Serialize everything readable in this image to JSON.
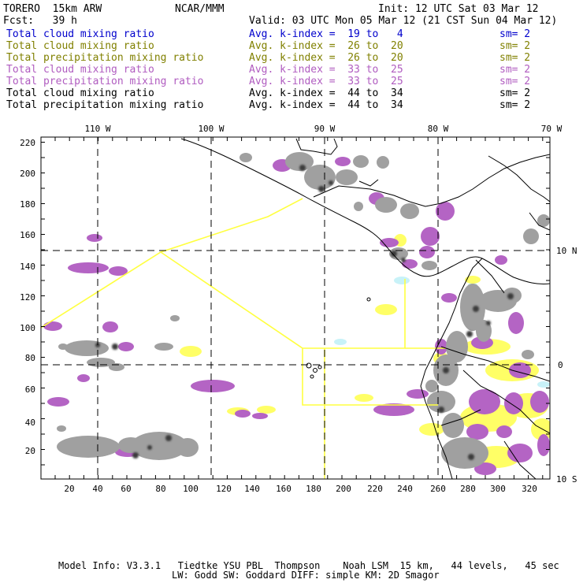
{
  "header": {
    "model": "TORERO  15km ARW",
    "org": "NCAR/MMM",
    "init": "Init: 12 UTC Sat 03 Mar 12",
    "fcst": "Fcst:   39 h",
    "valid": "Valid: 03 UTC Mon 05 Mar 12 (21 CST Sun 04 Mar 12)"
  },
  "legend": [
    {
      "name": "Total cloud mixing ratio",
      "avg": "Avg. k-index =  19 to   4",
      "sm": "sm= 2",
      "color": "#0000cc"
    },
    {
      "name": "Total cloud mixing ratio",
      "avg": "Avg. k-index =  26 to  20",
      "sm": "sm= 2",
      "color": "#808000"
    },
    {
      "name": "Total precipitation mixing ratio",
      "avg": "Avg. k-index =  26 to  20",
      "sm": "sm= 2",
      "color": "#808000"
    },
    {
      "name": "Total cloud mixing ratio",
      "avg": "Avg. k-index =  33 to  25",
      "sm": "sm= 2",
      "color": "#b05cc0"
    },
    {
      "name": "Total precipitation mixing ratio",
      "avg": "Avg. k-index =  33 to  25",
      "sm": "sm= 2",
      "color": "#b05cc0"
    },
    {
      "name": "Total cloud mixing ratio",
      "avg": "Avg. k-index =  44 to  34",
      "sm": "sm= 2",
      "color": "#000000"
    },
    {
      "name": "Total precipitation mixing ratio",
      "avg": "Avg. k-index =  44 to  34",
      "sm": "sm= 2",
      "color": "#000000"
    }
  ],
  "map": {
    "top_lon_labels": [
      "110 W",
      "100 W",
      "90 W",
      "80 W",
      "70 W"
    ],
    "right_lat_labels": [
      "10 N",
      "0",
      "10 S"
    ],
    "y_ticks": [
      "20",
      "40",
      "60",
      "80",
      "100",
      "120",
      "140",
      "160",
      "180",
      "200",
      "220"
    ],
    "x_ticks": [
      "20",
      "40",
      "60",
      "80",
      "100",
      "120",
      "140",
      "160",
      "180",
      "200",
      "220",
      "240",
      "260",
      "280",
      "300",
      "320"
    ]
  },
  "colors": {
    "grey": "#a0a0a0",
    "dark": "#303030",
    "purple": "#b060c0",
    "yellow": "#ffff60",
    "cyan": "#c0f0f8",
    "line": "#ffff40"
  },
  "footer": {
    "line1": "Model Info: V3.3.1   Tiedtke YSU PBL  Thompson    Noah LSM  15 km,   44 levels,   45 sec",
    "line2": "LW: Godd SW: Goddard DIFF: simple KM: 2D Smagor"
  }
}
